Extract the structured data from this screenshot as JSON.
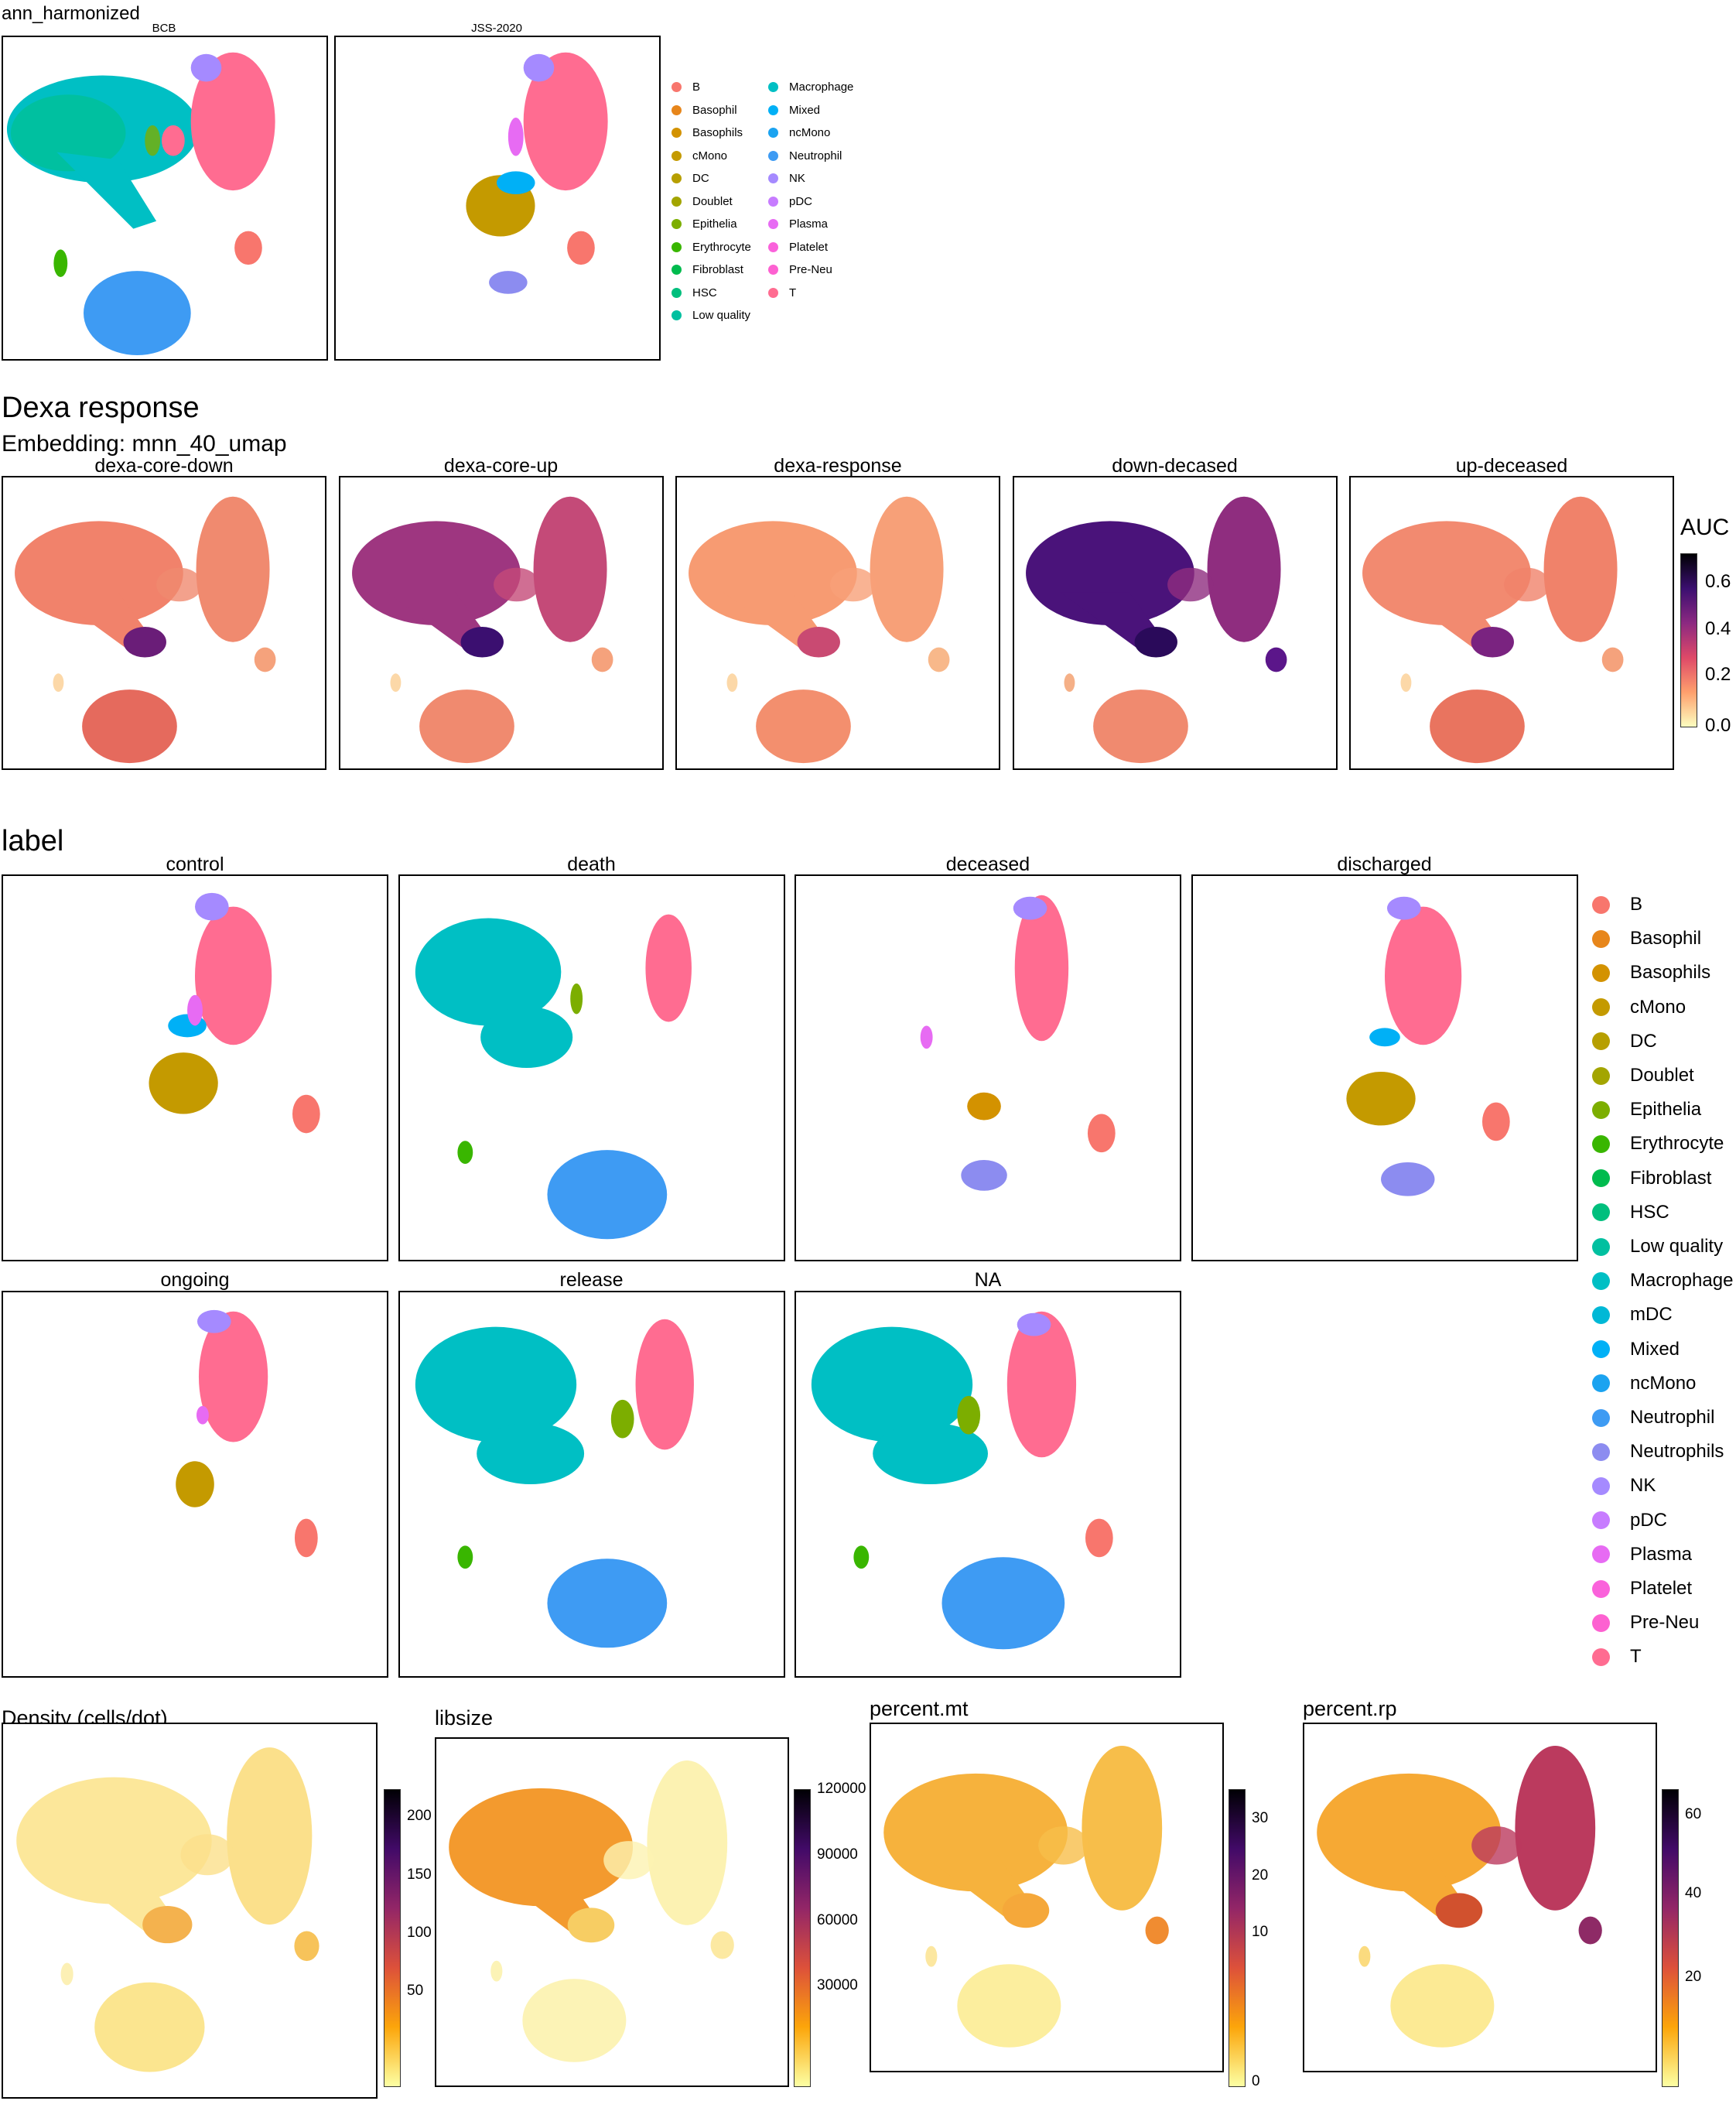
{
  "chart_data": [
    {
      "id": "ann",
      "type": "scatter",
      "title": "ann_harmonized",
      "panels": [
        "BCB",
        "JSS-2020"
      ],
      "legend": {
        "col1": [
          "B",
          "Basophil",
          "Basophils",
          "cMono",
          "DC",
          "Doublet",
          "Epithelia",
          "Erythrocyte",
          "Fibroblast",
          "HSC",
          "Low quality"
        ],
        "col2": [
          "Macrophage",
          "Mixed",
          "ncMono",
          "Neutrophil",
          "NK",
          "pDC",
          "Plasma",
          "Platelet",
          "Pre-Neu",
          "T"
        ]
      }
    },
    {
      "id": "dexa",
      "type": "heatmap",
      "title": "Dexa response",
      "subtitle": "Embedding: mnn_40_umap",
      "panels": [
        "dexa-core-down",
        "dexa-core-up",
        "dexa-response",
        "down-decased",
        "up-deceased"
      ],
      "colorbar": {
        "title": "AUC",
        "ticks": [
          "0.6",
          "0.4",
          "0.2",
          "0.0"
        ],
        "range": [
          0,
          0.7
        ]
      }
    },
    {
      "id": "label",
      "type": "scatter",
      "title": "label",
      "panels": [
        "control",
        "death",
        "deceased",
        "discharged",
        "ongoing",
        "release",
        "NA"
      ],
      "legend": [
        "B",
        "Basophil",
        "Basophils",
        "cMono",
        "DC",
        "Doublet",
        "Epithelia",
        "Erythrocyte",
        "Fibroblast",
        "HSC",
        "Low quality",
        "Macrophage",
        "mDC",
        "Mixed",
        "ncMono",
        "Neutrophil",
        "Neutrophils",
        "NK",
        "pDC",
        "Plasma",
        "Platelet",
        "Pre-Neu",
        "T"
      ]
    },
    {
      "id": "qc",
      "type": "heatmap",
      "panels": [
        {
          "title": "Density (cells/dot)",
          "ticks": [
            "200",
            "150",
            "100",
            "50"
          ]
        },
        {
          "title": "libsize",
          "ticks": [
            "120000",
            "90000",
            "60000",
            "30000"
          ]
        },
        {
          "title": "percent.mt",
          "ticks": [
            "30",
            "20",
            "10",
            "0"
          ]
        },
        {
          "title": "percent.rp",
          "ticks": [
            "60",
            "40",
            "20"
          ]
        }
      ]
    }
  ],
  "colors": {
    "B": "#f8766d",
    "Basophil": "#e7861b",
    "Basophils": "#d39200",
    "cMono": "#c49a00",
    "DC": "#b79f00",
    "Doublet": "#a3a500",
    "Epithelia": "#7cae00",
    "Erythrocyte": "#39b600",
    "Fibroblast": "#00bb4e",
    "HSC": "#00bf7d",
    "Low quality": "#00c0a0",
    "Macrophage": "#00bfc4",
    "mDC": "#00b8d6",
    "Mixed": "#00b0f6",
    "ncMono": "#1ba3f0",
    "Neutrophil": "#3e9bf3",
    "Neutrophils": "#8c8cf0",
    "NK": "#a58aff",
    "pDC": "#c77cff",
    "Plasma": "#e76bf3",
    "Platelet": "#fa62db",
    "Pre-Neu": "#fd61d1",
    "T": "#ff6c91"
  }
}
